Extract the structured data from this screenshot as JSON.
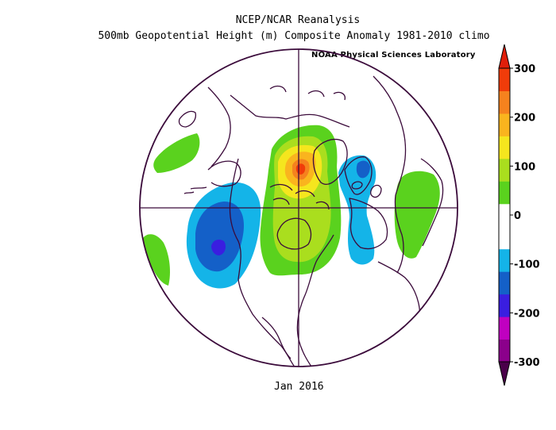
{
  "title": "NCEP/NCAR Reanalysis",
  "subtitle": "500mb Geopotential Height (m) Composite Anomaly 1981-2010 climo",
  "credit": "NOAA Physical Sciences Laboratory",
  "date_label": "Jan 2016",
  "colorbar": {
    "labels": [
      "300",
      "200",
      "100",
      "0",
      "-100",
      "-200",
      "-300"
    ],
    "colors": [
      "#8b008b",
      "#c000c0",
      "#3a1ee0",
      "#1460c8",
      "#14b4e8",
      "#ffffff",
      "#ffffff",
      "#5ad21e",
      "#aade1e",
      "#f5e61e",
      "#fab41e",
      "#f5821e",
      "#f03c0a"
    ]
  },
  "map": {
    "projection": "north-polar-stereographic",
    "anomaly_fill_colors": {
      "pos_1": "#5ad21e",
      "pos_2": "#aade1e",
      "pos_3": "#f5e61e",
      "pos_4": "#fab41e",
      "pos_5": "#f5821e",
      "pos_6": "#f03c0a",
      "neg_1": "#14b4e8",
      "neg_2": "#1460c8",
      "neg_3": "#3a1ee0"
    },
    "coast_color": "#3b0b3b"
  }
}
